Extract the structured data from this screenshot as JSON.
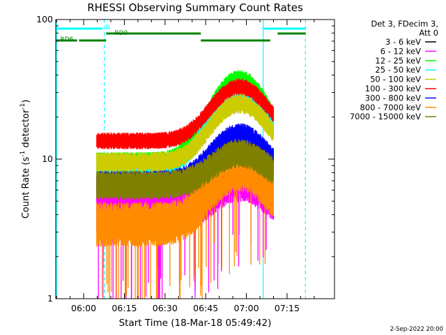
{
  "chart_data": {
    "type": "line",
    "title": "RHESSI Observing Summary Count Rates",
    "xlabel": "Start Time (18-Mar-18 05:49:42)",
    "ylabel_main": "Count Rate (s",
    "ylabel_sup1": "-1",
    "ylabel_mid": " detector",
    "ylabel_sup2": "-1",
    "ylabel_end": ")",
    "y_scale": "log",
    "ylim": [
      1,
      100
    ],
    "xlim_minutes_after_0600": [
      -10.3,
      92.5
    ],
    "x_ticks": [
      {
        "label": "06:00",
        "minute": 0
      },
      {
        "label": "06:15",
        "minute": 15
      },
      {
        "label": "06:30",
        "minute": 30
      },
      {
        "label": "06:45",
        "minute": 45
      },
      {
        "label": "07:00",
        "minute": 60
      },
      {
        "label": "07:15",
        "minute": 75
      }
    ],
    "y_ticks": [
      {
        "label": "1",
        "value": 1
      },
      {
        "label": "10",
        "value": 10
      },
      {
        "label": "100",
        "value": 100
      }
    ],
    "legend_header": [
      "Det 3, FDecim 3,",
      "Att 0"
    ],
    "series": [
      {
        "name": "3 - 6 keV",
        "color": "#000000",
        "start_minute": 4.8,
        "end_minute": 70.0,
        "base": 6.0,
        "peak": 12.5,
        "peak_minute": 57.5,
        "width": 9,
        "noise": 0.16
      },
      {
        "name": "6 - 12 keV",
        "color": "#ff00ff",
        "start_minute": 4.8,
        "end_minute": 70.0,
        "base": 4.2,
        "peak": 7.5,
        "peak_minute": 57.5,
        "width": 9,
        "noise": 0.35
      },
      {
        "name": "12 - 25 keV",
        "color": "#00ff00",
        "start_minute": 4.8,
        "end_minute": 70.0,
        "base": 9.5,
        "peak": 37,
        "peak_minute": 57.5,
        "width": 9,
        "noise": 0.12
      },
      {
        "name": "25 - 50 keV",
        "color": "#00ffff",
        "start_minute": 4.8,
        "end_minute": 70.0,
        "base": 8.8,
        "peak": 29,
        "peak_minute": 57.5,
        "width": 9,
        "noise": 0.12
      },
      {
        "name": "50 - 100 keV",
        "color": "#cccc00",
        "start_minute": 4.8,
        "end_minute": 70.0,
        "base": 9.5,
        "peak": 25,
        "peak_minute": 57.5,
        "width": 9,
        "noise": 0.12
      },
      {
        "name": "100 - 300 keV",
        "color": "#ff0000",
        "start_minute": 4.8,
        "end_minute": 70.0,
        "base": 13.5,
        "peak": 33,
        "peak_minute": 57.5,
        "width": 9,
        "noise": 0.1
      },
      {
        "name": "300 - 800 keV",
        "color": "#0000ff",
        "start_minute": 4.8,
        "end_minute": 70.0,
        "base": 6.8,
        "peak": 15,
        "peak_minute": 57.5,
        "width": 9,
        "noise": 0.14
      },
      {
        "name": "800 - 7000 keV",
        "color": "#ff8c00",
        "start_minute": 4.8,
        "end_minute": 70.0,
        "base": 3.4,
        "peak": 8.5,
        "peak_minute": 57.5,
        "width": 9,
        "noise": 0.3
      },
      {
        "name": "7000 - 15000 keV",
        "color": "#808000",
        "start_minute": 4.8,
        "end_minute": 70.0,
        "base": 6.5,
        "peak": 11,
        "peak_minute": 57.5,
        "width": 9,
        "noise": 0.18
      }
    ],
    "state_bars": [
      {
        "label": "",
        "color": "#00ffff",
        "level": "top",
        "start_minute": -10.3,
        "end_minute": 7.0
      },
      {
        "label": "",
        "color": "#00ffff",
        "level": "top",
        "start_minute": 66.2,
        "end_minute": 81.8
      },
      {
        "label": "RD0",
        "color": "#008000",
        "level": "middle",
        "start_minute": 8.3,
        "end_minute": 43.2
      },
      {
        "label": "",
        "color": "#008000",
        "level": "middle",
        "start_minute": 71.5,
        "end_minute": 81.8
      },
      {
        "label": "",
        "color": "#008000",
        "level": "bottom",
        "start_minute": -10.3,
        "end_minute": -2.4
      },
      {
        "label": "RD6",
        "color": "#008000",
        "level": "bottom",
        "start_minute": -1.7,
        "end_minute": 8.3
      },
      {
        "label": "",
        "color": "#008000",
        "level": "bottom",
        "start_minute": 43.2,
        "end_minute": 68.8
      }
    ],
    "state_marker": {
      "label": "N",
      "minute": 8.0
    },
    "vertical_lines": [
      {
        "minute": -10.0,
        "style": "solid",
        "color": "#00ffff"
      },
      {
        "minute": 7.6,
        "style": "dashed",
        "color": "#00ffff"
      },
      {
        "minute": 66.2,
        "style": "solid",
        "color": "#00ffff"
      },
      {
        "minute": 81.8,
        "style": "dashed",
        "color": "#00ffff"
      }
    ],
    "footer_date": "2-Sep-2022 20:00"
  }
}
